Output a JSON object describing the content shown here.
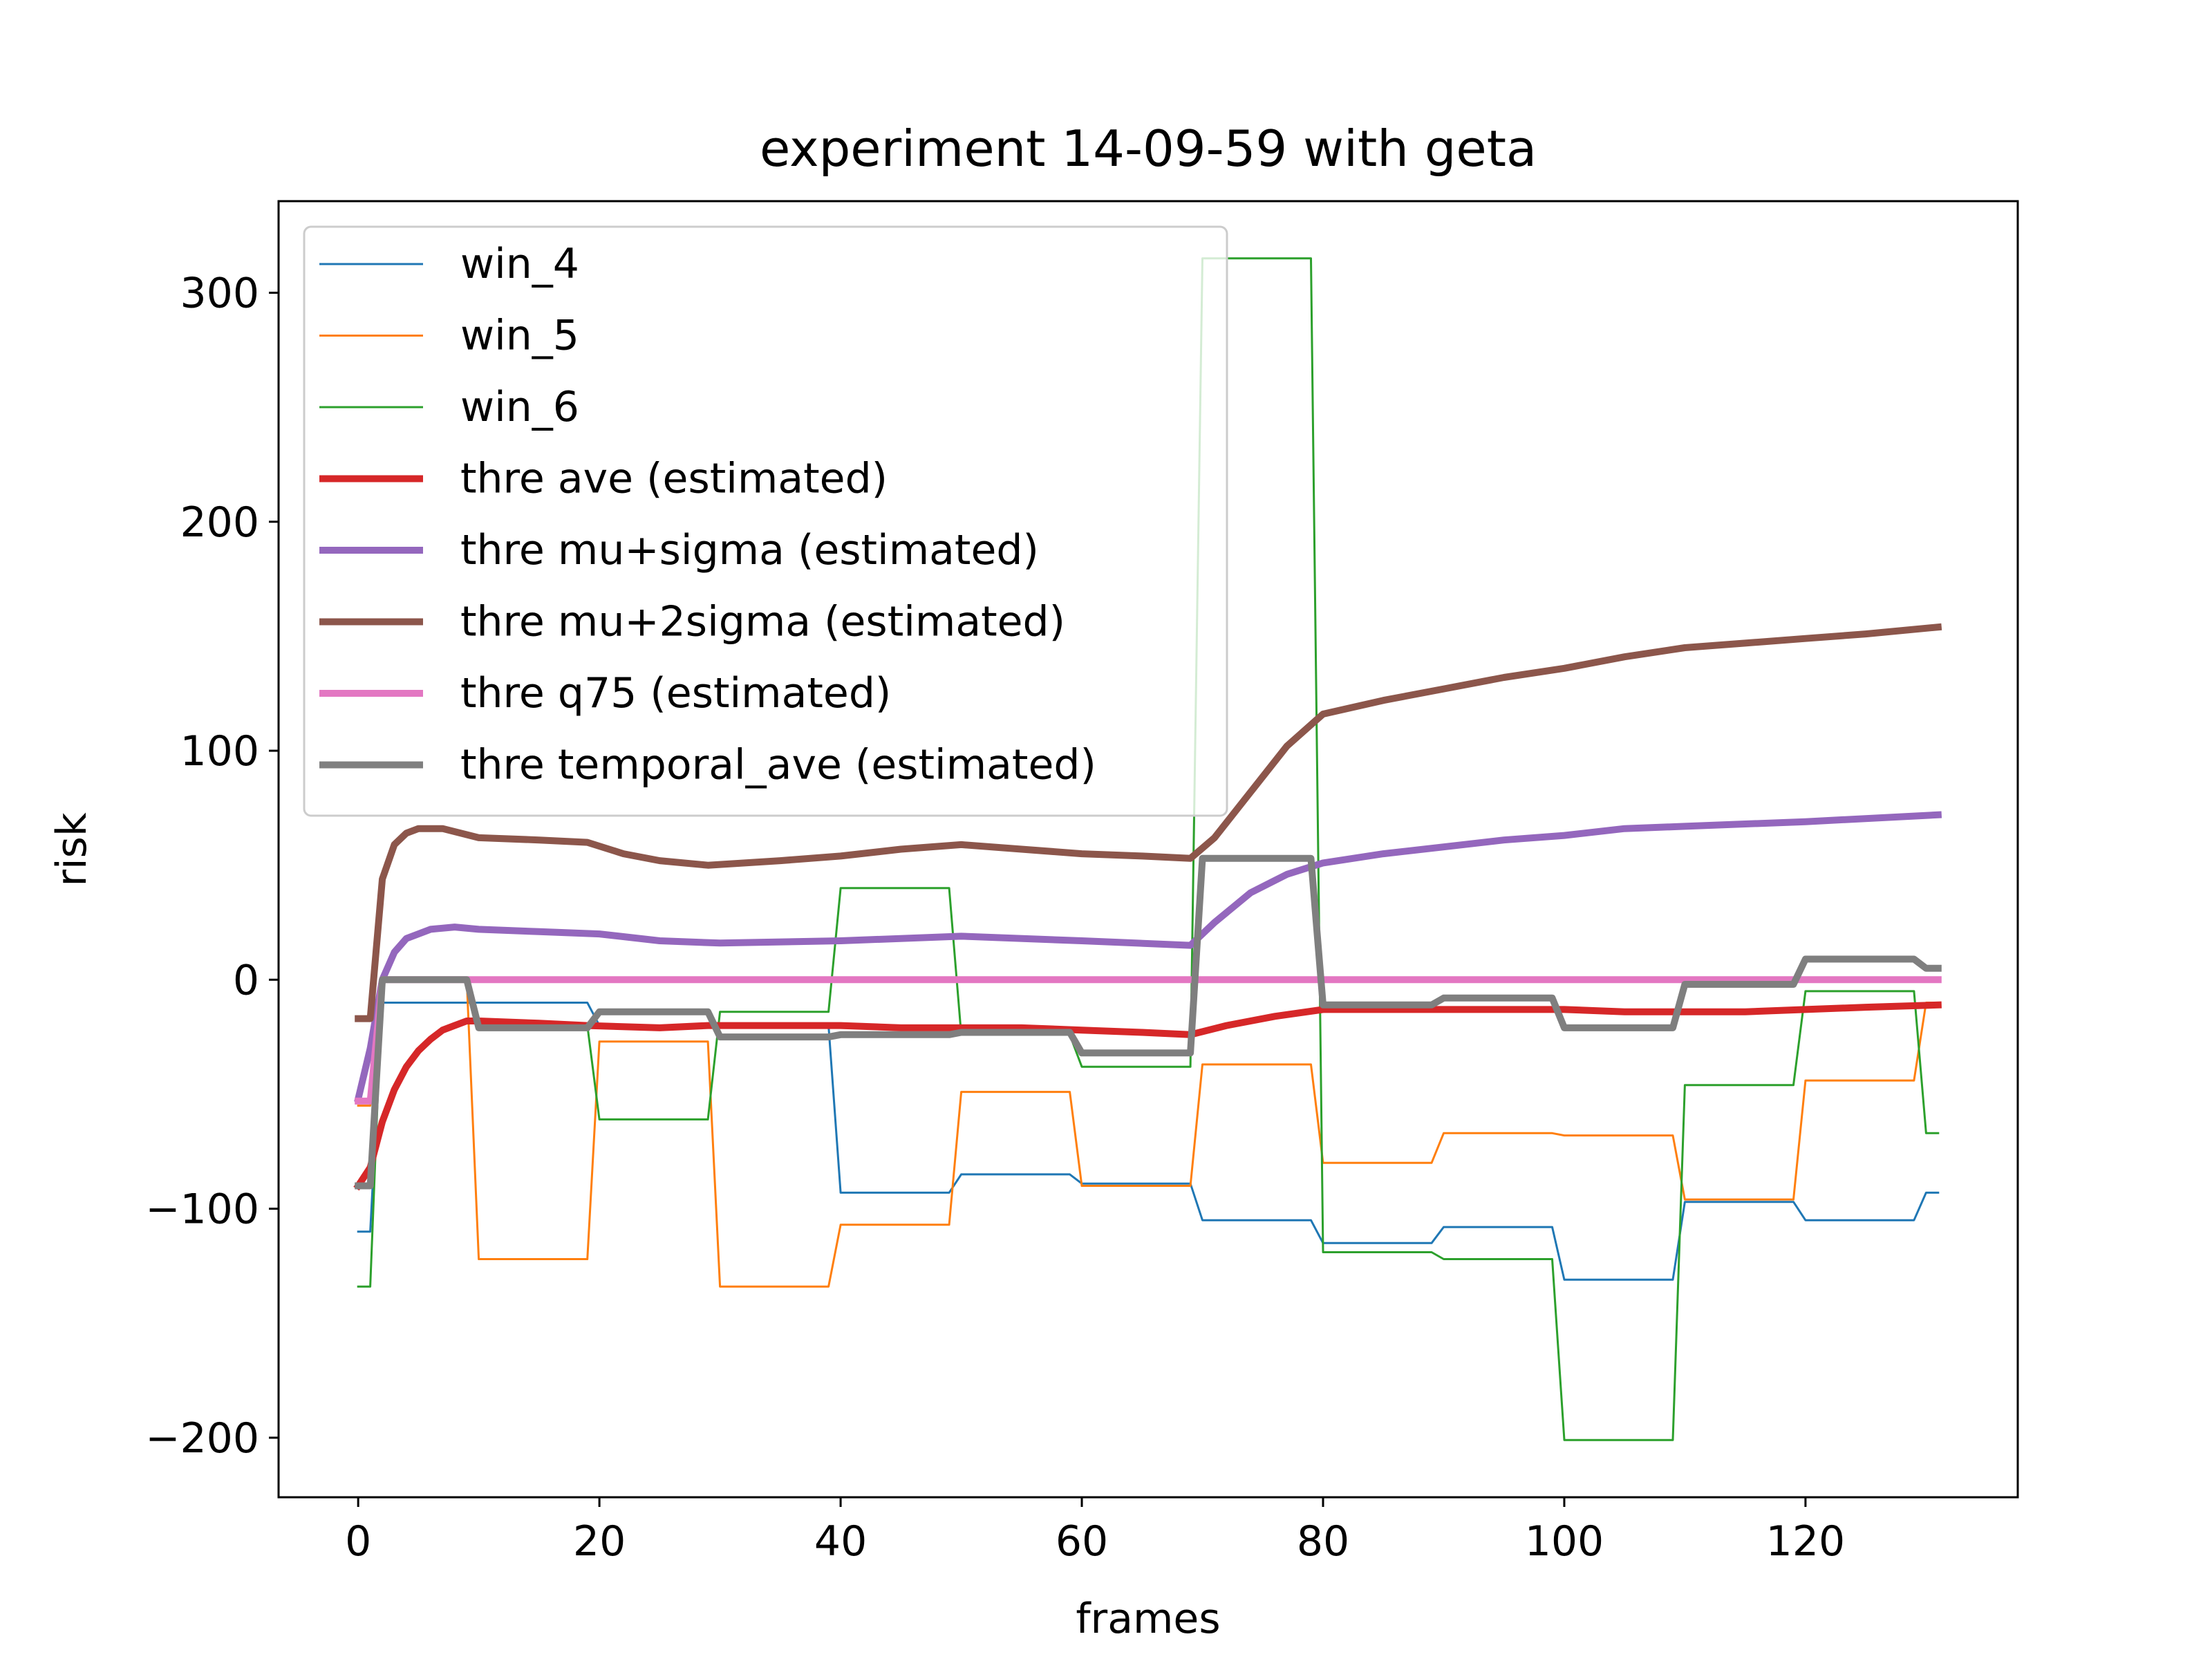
{
  "chart_data": {
    "type": "line",
    "title": "experiment 14-09-59 with geta",
    "xlabel": "frames",
    "ylabel": "risk",
    "xlim": [
      -6.6,
      137.6
    ],
    "ylim": [
      -226,
      340
    ],
    "xticks": [
      0,
      20,
      40,
      60,
      80,
      100,
      120
    ],
    "yticks": [
      -200,
      -100,
      0,
      100,
      200,
      300
    ],
    "xtick_labels": [
      "0",
      "20",
      "40",
      "60",
      "80",
      "100",
      "120"
    ],
    "ytick_labels": [
      "−200",
      "−100",
      "0",
      "100",
      "200",
      "300"
    ],
    "grid": false,
    "legend_position": "upper left",
    "series": [
      {
        "name": "win_4",
        "color": "#1f77b4",
        "linewidth": 3,
        "points": [
          [
            0,
            -110
          ],
          [
            1,
            -110
          ],
          [
            2,
            -10
          ],
          [
            19,
            -10
          ],
          [
            20,
            -20
          ],
          [
            39,
            -20
          ],
          [
            40,
            -93
          ],
          [
            49,
            -93
          ],
          [
            50,
            -85
          ],
          [
            59,
            -85
          ],
          [
            60,
            -89
          ],
          [
            69,
            -89
          ],
          [
            70,
            -105
          ],
          [
            79,
            -105
          ],
          [
            80,
            -115
          ],
          [
            89,
            -115
          ],
          [
            90,
            -108
          ],
          [
            99,
            -108
          ],
          [
            100,
            -131
          ],
          [
            109,
            -131
          ],
          [
            110,
            -97
          ],
          [
            119,
            -97
          ],
          [
            120,
            -105
          ],
          [
            129,
            -105
          ],
          [
            130,
            -93
          ],
          [
            131,
            -93
          ]
        ]
      },
      {
        "name": "win_5",
        "color": "#ff7f0e",
        "linewidth": 3,
        "points": [
          [
            0,
            -55
          ],
          [
            1,
            -55
          ],
          [
            2,
            0
          ],
          [
            9,
            0
          ],
          [
            10,
            -122
          ],
          [
            19,
            -122
          ],
          [
            20,
            -27
          ],
          [
            29,
            -27
          ],
          [
            30,
            -134
          ],
          [
            39,
            -134
          ],
          [
            40,
            -107
          ],
          [
            49,
            -107
          ],
          [
            50,
            -49
          ],
          [
            59,
            -49
          ],
          [
            60,
            -90
          ],
          [
            69,
            -90
          ],
          [
            70,
            -37
          ],
          [
            79,
            -37
          ],
          [
            80,
            -80
          ],
          [
            89,
            -80
          ],
          [
            90,
            -67
          ],
          [
            99,
            -67
          ],
          [
            100,
            -68
          ],
          [
            109,
            -68
          ],
          [
            110,
            -96
          ],
          [
            119,
            -96
          ],
          [
            120,
            -44
          ],
          [
            129,
            -44
          ],
          [
            130,
            -10
          ],
          [
            131,
            -10
          ]
        ]
      },
      {
        "name": "win_6",
        "color": "#2ca02c",
        "linewidth": 3,
        "points": [
          [
            0,
            -134
          ],
          [
            1,
            -134
          ],
          [
            2,
            0
          ],
          [
            9,
            0
          ],
          [
            10,
            -20
          ],
          [
            19,
            -20
          ],
          [
            20,
            -61
          ],
          [
            29,
            -61
          ],
          [
            30,
            -14
          ],
          [
            39,
            -14
          ],
          [
            40,
            40
          ],
          [
            49,
            40
          ],
          [
            50,
            -24
          ],
          [
            59,
            -24
          ],
          [
            60,
            -38
          ],
          [
            69,
            -38
          ],
          [
            70,
            315
          ],
          [
            79,
            315
          ],
          [
            80,
            -119
          ],
          [
            89,
            -119
          ],
          [
            90,
            -122
          ],
          [
            99,
            -122
          ],
          [
            100,
            -201
          ],
          [
            109,
            -201
          ],
          [
            110,
            -46
          ],
          [
            119,
            -46
          ],
          [
            120,
            -5
          ],
          [
            129,
            -5
          ],
          [
            130,
            -67
          ],
          [
            131,
            -67
          ]
        ]
      },
      {
        "name": "thre ave (estimated)",
        "color": "#d62728",
        "linewidth": 10,
        "points": [
          [
            0,
            -90
          ],
          [
            1,
            -82
          ],
          [
            2,
            -62
          ],
          [
            3,
            -48
          ],
          [
            4,
            -38
          ],
          [
            5,
            -31
          ],
          [
            6,
            -26
          ],
          [
            7,
            -22
          ],
          [
            8,
            -20
          ],
          [
            9,
            -18
          ],
          [
            10,
            -18
          ],
          [
            15,
            -19
          ],
          [
            19,
            -20
          ],
          [
            25,
            -21
          ],
          [
            29,
            -20
          ],
          [
            35,
            -20
          ],
          [
            40,
            -20
          ],
          [
            45,
            -21
          ],
          [
            50,
            -21
          ],
          [
            55,
            -21
          ],
          [
            60,
            -22
          ],
          [
            65,
            -23
          ],
          [
            69,
            -24
          ],
          [
            72,
            -20
          ],
          [
            76,
            -16
          ],
          [
            80,
            -13
          ],
          [
            90,
            -13
          ],
          [
            100,
            -13
          ],
          [
            105,
            -14
          ],
          [
            110,
            -14
          ],
          [
            115,
            -14
          ],
          [
            120,
            -13
          ],
          [
            125,
            -12
          ],
          [
            131,
            -11
          ]
        ]
      },
      {
        "name": "thre mu+sigma (estimated)",
        "color": "#9467bd",
        "linewidth": 10,
        "points": [
          [
            0,
            -52
          ],
          [
            1,
            -30
          ],
          [
            2,
            0
          ],
          [
            3,
            12
          ],
          [
            4,
            18
          ],
          [
            5,
            20
          ],
          [
            6,
            22
          ],
          [
            8,
            23
          ],
          [
            10,
            22
          ],
          [
            15,
            21
          ],
          [
            20,
            20
          ],
          [
            25,
            17
          ],
          [
            30,
            16
          ],
          [
            40,
            17
          ],
          [
            50,
            19
          ],
          [
            60,
            17
          ],
          [
            69,
            15
          ],
          [
            71,
            25
          ],
          [
            74,
            38
          ],
          [
            77,
            46
          ],
          [
            80,
            51
          ],
          [
            85,
            55
          ],
          [
            90,
            58
          ],
          [
            95,
            61
          ],
          [
            100,
            63
          ],
          [
            105,
            66
          ],
          [
            110,
            67
          ],
          [
            120,
            69
          ],
          [
            131,
            72
          ]
        ]
      },
      {
        "name": "thre mu+2sigma (estimated)",
        "color": "#8c564b",
        "linewidth": 10,
        "points": [
          [
            0,
            -17
          ],
          [
            1,
            -17
          ],
          [
            2,
            44
          ],
          [
            3,
            59
          ],
          [
            4,
            64
          ],
          [
            5,
            66
          ],
          [
            7,
            66
          ],
          [
            10,
            62
          ],
          [
            15,
            61
          ],
          [
            19,
            60
          ],
          [
            22,
            55
          ],
          [
            25,
            52
          ],
          [
            29,
            50
          ],
          [
            35,
            52
          ],
          [
            40,
            54
          ],
          [
            45,
            57
          ],
          [
            50,
            59
          ],
          [
            55,
            57
          ],
          [
            60,
            55
          ],
          [
            65,
            54
          ],
          [
            69,
            53
          ],
          [
            71,
            62
          ],
          [
            74,
            82
          ],
          [
            77,
            102
          ],
          [
            80,
            116
          ],
          [
            85,
            122
          ],
          [
            90,
            127
          ],
          [
            95,
            132
          ],
          [
            100,
            136
          ],
          [
            105,
            141
          ],
          [
            110,
            145
          ],
          [
            115,
            147
          ],
          [
            120,
            149
          ],
          [
            125,
            151
          ],
          [
            131,
            154
          ]
        ]
      },
      {
        "name": "thre q75 (estimated)",
        "color": "#e377c2",
        "linewidth": 10,
        "points": [
          [
            0,
            -53
          ],
          [
            1,
            -53
          ],
          [
            2,
            0
          ],
          [
            131,
            0
          ]
        ]
      },
      {
        "name": "thre temporal_ave (estimated)",
        "color": "#7f7f7f",
        "linewidth": 10,
        "points": [
          [
            0,
            -90
          ],
          [
            1,
            -90
          ],
          [
            2,
            0
          ],
          [
            9,
            0
          ],
          [
            10,
            -21
          ],
          [
            19,
            -21
          ],
          [
            20,
            -14
          ],
          [
            29,
            -14
          ],
          [
            30,
            -25
          ],
          [
            39,
            -25
          ],
          [
            40,
            -24
          ],
          [
            49,
            -24
          ],
          [
            50,
            -23
          ],
          [
            59,
            -23
          ],
          [
            60,
            -32
          ],
          [
            69,
            -32
          ],
          [
            70,
            53
          ],
          [
            79,
            53
          ],
          [
            80,
            -11
          ],
          [
            89,
            -11
          ],
          [
            90,
            -8
          ],
          [
            99,
            -8
          ],
          [
            100,
            -21
          ],
          [
            109,
            -21
          ],
          [
            110,
            -2
          ],
          [
            119,
            -2
          ],
          [
            120,
            9
          ],
          [
            129,
            9
          ],
          [
            130,
            5
          ],
          [
            131,
            5
          ]
        ]
      }
    ]
  }
}
